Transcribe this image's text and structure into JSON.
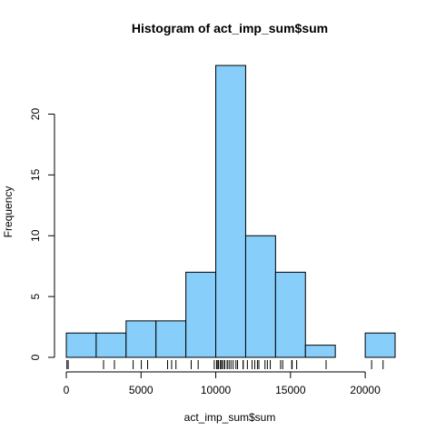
{
  "chart_data": {
    "type": "bar",
    "title": "Histogram of act_imp_sum$sum",
    "xlabel": "act_imp_sum$sum",
    "ylabel": "Frequency",
    "bins": [
      {
        "from": 0,
        "to": 2000,
        "count": 2
      },
      {
        "from": 2000,
        "to": 4000,
        "count": 2
      },
      {
        "from": 4000,
        "to": 6000,
        "count": 3
      },
      {
        "from": 6000,
        "to": 8000,
        "count": 3
      },
      {
        "from": 8000,
        "to": 10000,
        "count": 7
      },
      {
        "from": 10000,
        "to": 12000,
        "count": 24
      },
      {
        "from": 12000,
        "to": 14000,
        "count": 10
      },
      {
        "from": 14000,
        "to": 16000,
        "count": 7
      },
      {
        "from": 16000,
        "to": 18000,
        "count": 1
      },
      {
        "from": 18000,
        "to": 20000,
        "count": 0
      },
      {
        "from": 20000,
        "to": 22000,
        "count": 2
      }
    ],
    "xlim": [
      0,
      22000
    ],
    "ylim": [
      0,
      24
    ],
    "x_ticks": [
      0,
      5000,
      10000,
      15000,
      20000
    ],
    "y_ticks": [
      0,
      5,
      10,
      15,
      20
    ],
    "bar_color": "#87CEFA",
    "rug_values": [
      41,
      126,
      2492,
      3219,
      4472,
      5018,
      5441,
      6778,
      7047,
      7336,
      8355,
      8821,
      9900,
      10056,
      10139,
      10183,
      10304,
      10395,
      10439,
      10571,
      10600,
      10765,
      10766,
      10890,
      11015,
      11162,
      11352,
      11458,
      11829,
      11834,
      12116,
      12426,
      12608,
      12787,
      12883,
      13294,
      13452,
      13646,
      14339,
      14478,
      15084,
      15110,
      15414,
      17382,
      20427,
      21194
    ],
    "grid": false,
    "legend": "none"
  }
}
